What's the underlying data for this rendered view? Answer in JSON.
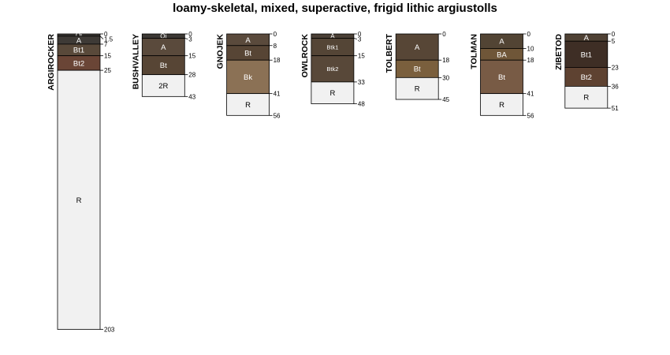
{
  "chart_data": {
    "type": "soil-profile-sketch",
    "title": "loamy-skeletal, mixed, superactive, frigid lithic argiustolls",
    "units": "cm",
    "profiles": [
      {
        "id": "ARGIROCKER",
        "horizons": [
          {
            "name": "Oi",
            "top": 0,
            "bottom": 1.5,
            "color": "#3e3a36"
          },
          {
            "name": "A",
            "top": 1.5,
            "bottom": 7,
            "color": "#3e3a36"
          },
          {
            "name": "Bt1",
            "top": 7,
            "bottom": 15,
            "color": "#59493a"
          },
          {
            "name": "Bt2",
            "top": 15,
            "bottom": 25,
            "color": "#6a4536"
          },
          {
            "name": "R",
            "top": 25,
            "bottom": 203,
            "color": "#f1f1f1"
          }
        ],
        "depth_labels": [
          "0",
          "1.5",
          "7",
          "15",
          "25",
          "203"
        ]
      },
      {
        "id": "BUSHVALLEY",
        "horizons": [
          {
            "name": "Oi",
            "top": 0,
            "bottom": 3,
            "color": "#3c3834"
          },
          {
            "name": "A",
            "top": 3,
            "bottom": 15,
            "color": "#5a4a3c"
          },
          {
            "name": "Bt",
            "top": 15,
            "bottom": 28,
            "color": "#574535"
          },
          {
            "name": "2R",
            "top": 28,
            "bottom": 43,
            "color": "#f1f1f1"
          }
        ],
        "depth_labels": [
          "0",
          "3",
          "15",
          "28",
          "43"
        ]
      },
      {
        "id": "GNOJEK",
        "horizons": [
          {
            "name": "A",
            "top": 0,
            "bottom": 8,
            "color": "#5a4a3c"
          },
          {
            "name": "Bt",
            "top": 8,
            "bottom": 18,
            "color": "#574535"
          },
          {
            "name": "Bk",
            "top": 18,
            "bottom": 41,
            "color": "#8b7155"
          },
          {
            "name": "R",
            "top": 41,
            "bottom": 56,
            "color": "#f1f1f1"
          }
        ],
        "depth_labels": [
          "0",
          "8",
          "18",
          "41",
          "56"
        ]
      },
      {
        "id": "OWLROCK",
        "horizons": [
          {
            "name": "A",
            "top": 0,
            "bottom": 3,
            "color": "#4a3f35"
          },
          {
            "name": "Btk1",
            "top": 3,
            "bottom": 15,
            "color": "#544536"
          },
          {
            "name": "Btk2",
            "top": 15,
            "bottom": 33,
            "color": "#584839"
          },
          {
            "name": "R",
            "top": 33,
            "bottom": 48,
            "color": "#f1f1f1"
          }
        ],
        "depth_labels": [
          "0",
          "3",
          "15",
          "33",
          "48"
        ]
      },
      {
        "id": "TOLBERT",
        "horizons": [
          {
            "name": "A",
            "top": 0,
            "bottom": 18,
            "color": "#574636"
          },
          {
            "name": "Bt",
            "top": 18,
            "bottom": 30,
            "color": "#7a5f3d"
          },
          {
            "name": "R",
            "top": 30,
            "bottom": 45,
            "color": "#f1f1f1"
          }
        ],
        "depth_labels": [
          "0",
          "18",
          "30",
          "45"
        ]
      },
      {
        "id": "TOLMAN",
        "horizons": [
          {
            "name": "A",
            "top": 0,
            "bottom": 10,
            "color": "#524434"
          },
          {
            "name": "BA",
            "top": 10,
            "bottom": 18,
            "color": "#6f5638"
          },
          {
            "name": "Bt",
            "top": 18,
            "bottom": 41,
            "color": "#785b45"
          },
          {
            "name": "R",
            "top": 41,
            "bottom": 56,
            "color": "#f1f1f1"
          }
        ],
        "depth_labels": [
          "0",
          "10",
          "18",
          "41",
          "56"
        ]
      },
      {
        "id": "ZIBETOD",
        "horizons": [
          {
            "name": "A",
            "top": 0,
            "bottom": 5,
            "color": "#4f4134"
          },
          {
            "name": "Bt1",
            "top": 5,
            "bottom": 23,
            "color": "#3e2e25"
          },
          {
            "name": "Bt2",
            "top": 23,
            "bottom": 36,
            "color": "#5e4231"
          },
          {
            "name": "R",
            "top": 36,
            "bottom": 51,
            "color": "#f1f1f1"
          }
        ],
        "depth_labels": [
          "0",
          "5",
          "23",
          "36",
          "51"
        ]
      }
    ]
  }
}
